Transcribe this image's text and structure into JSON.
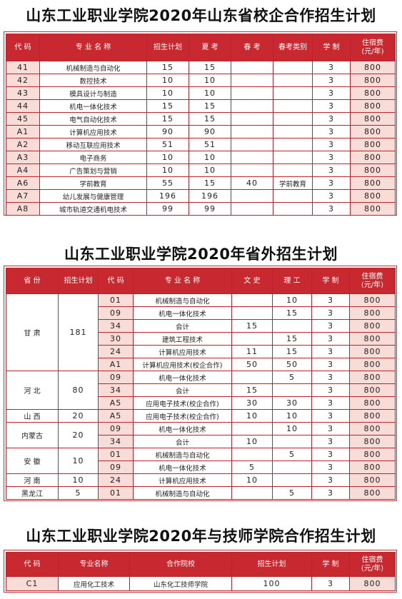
{
  "colors": {
    "header_bg": "#c8282f",
    "row_pink": "#f7dcd8",
    "border": "#b9242c"
  },
  "section1": {
    "title": "山东工业职业学院2020年山东省校企合作招生计划",
    "headers": [
      "代 码",
      "专 业 名 称",
      "招生计划",
      "夏 考",
      "春 考",
      "春考类别",
      "学 制",
      "住宿费\n(元/年)"
    ],
    "rows": [
      [
        "41",
        "机械制造与自动化",
        "15",
        "15",
        "",
        "",
        "3",
        "800"
      ],
      [
        "42",
        "数控技术",
        "10",
        "10",
        "",
        "",
        "3",
        "800"
      ],
      [
        "43",
        "模具设计与制造",
        "10",
        "10",
        "",
        "",
        "3",
        "800"
      ],
      [
        "44",
        "机电一体化技术",
        "15",
        "15",
        "",
        "",
        "3",
        "800"
      ],
      [
        "45",
        "电气自动化技术",
        "15",
        "15",
        "",
        "",
        "3",
        "800"
      ],
      [
        "A1",
        "计算机应用技术",
        "90",
        "90",
        "",
        "",
        "3",
        "800"
      ],
      [
        "A2",
        "移动互联应用技术",
        "51",
        "51",
        "",
        "",
        "3",
        "800"
      ],
      [
        "A3",
        "电子商务",
        "10",
        "10",
        "",
        "",
        "3",
        "800"
      ],
      [
        "A4",
        "广告策划与营销",
        "10",
        "10",
        "",
        "",
        "3",
        "800"
      ],
      [
        "A6",
        "学前教育",
        "55",
        "15",
        "40",
        "学前教育",
        "3",
        "800"
      ],
      [
        "A7",
        "幼儿发展与健康管理",
        "196",
        "196",
        "",
        "",
        "3",
        "800"
      ],
      [
        "A8",
        "城市轨道交通机电技术",
        "99",
        "99",
        "",
        "",
        "3",
        "800"
      ]
    ]
  },
  "section2": {
    "title": "山东工业职业学院2020年省外招生计划",
    "headers": [
      "省 份",
      "招生计划",
      "代 码",
      "专 业 名 称",
      "文 史",
      "理 工",
      "学 制",
      "住宿费\n(元/年)"
    ],
    "groups": [
      {
        "province": "甘 肃",
        "plan": "181",
        "rows": [
          [
            "01",
            "机械制造与自动化",
            "",
            "10",
            "3",
            "800"
          ],
          [
            "09",
            "机电一体化技术",
            "",
            "15",
            "3",
            "800"
          ],
          [
            "34",
            "会计",
            "15",
            "",
            "3",
            "800"
          ],
          [
            "30",
            "建筑工程技术",
            "",
            "15",
            "3",
            "800"
          ],
          [
            "24",
            "计算机应用技术",
            "11",
            "15",
            "3",
            "800"
          ],
          [
            "A1",
            "计算机应用技术(校企合作)",
            "50",
            "50",
            "3",
            "800"
          ]
        ]
      },
      {
        "province": "河 北",
        "plan": "80",
        "rows": [
          [
            "09",
            "机电一体化技术",
            "",
            "5",
            "3",
            "800"
          ],
          [
            "34",
            "会计",
            "15",
            "",
            "3",
            "800"
          ],
          [
            "A5",
            "应用电子技术(校企合作)",
            "30",
            "30",
            "3",
            "800"
          ]
        ]
      },
      {
        "province": "山 西",
        "plan": "20",
        "rows": [
          [
            "A5",
            "应用电子技术(校企合作)",
            "10",
            "10",
            "3",
            "800"
          ]
        ]
      },
      {
        "province": "内蒙古",
        "plan": "20",
        "rows": [
          [
            "09",
            "机电一体化技术",
            "",
            "10",
            "3",
            "800"
          ],
          [
            "34",
            "会计",
            "10",
            "",
            "3",
            "800"
          ]
        ]
      },
      {
        "province": "安 徽",
        "plan": "10",
        "rows": [
          [
            "01",
            "机械制造与自动化",
            "",
            "5",
            "3",
            "800"
          ],
          [
            "09",
            "机电一体化技术",
            "5",
            "",
            "3",
            "800"
          ]
        ]
      },
      {
        "province": "河 南",
        "plan": "10",
        "rows": [
          [
            "24",
            "计算机应用技术",
            "10",
            "",
            "3",
            "800"
          ]
        ]
      },
      {
        "province": "黑龙江",
        "plan": "5",
        "rows": [
          [
            "01",
            "机械制造与自动化",
            "",
            "5",
            "3",
            "800"
          ]
        ]
      }
    ]
  },
  "section3": {
    "title": "山东工业职业学院2020年与技师学院合作招生计划",
    "headers": [
      "代 码",
      "专业名称",
      "合作院校",
      "招生计划",
      "学 制",
      "住宿费\n(元/年)"
    ],
    "rows": [
      [
        "C1",
        "应用化工技术",
        "山东化工技师学院",
        "100",
        "3",
        "800"
      ]
    ]
  }
}
